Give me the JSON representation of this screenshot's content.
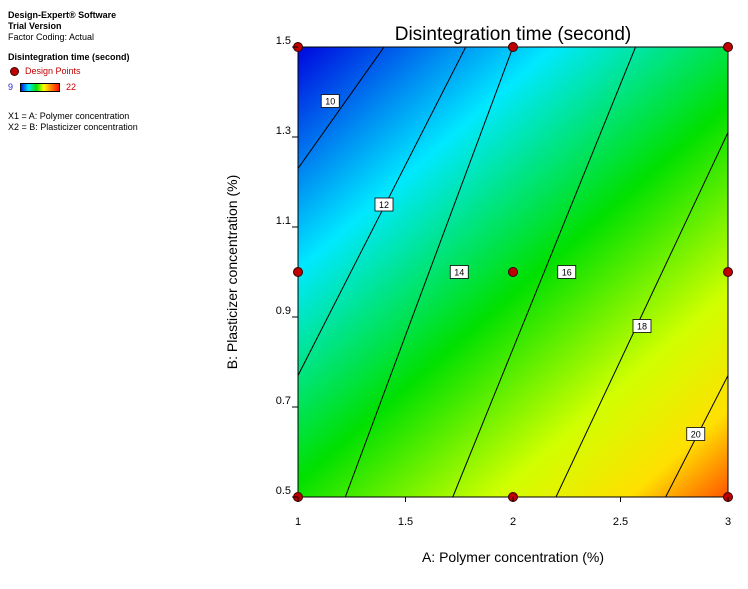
{
  "sidebar": {
    "software": "Design-Expert® Software",
    "version": "Trial Version",
    "coding": "Factor Coding: Actual",
    "response": "Disintegration time (second)",
    "design_points_label": "Design Points",
    "scale_min": "9",
    "scale_max": "22",
    "x1_def": "X1 = A: Polymer concentration",
    "x2_def": "X2 = B: Plasticizer concentration"
  },
  "colors": {
    "design_point": "#c00000",
    "scale_low": "#0018e0",
    "scale_high": "#ff1000"
  },
  "chart_data": {
    "type": "contour",
    "title": "Disintegration time (second)",
    "xlabel": "A: Polymer concentration (%)",
    "ylabel": "B: Plasticizer concentration (%)",
    "xlim": [
      1,
      3
    ],
    "ylim": [
      0.5,
      1.5
    ],
    "x_ticks": [
      "1",
      "1.5",
      "2",
      "2.5",
      "3"
    ],
    "y_ticks": [
      "0.5",
      "0.7",
      "0.9",
      "1.1",
      "1.3",
      "1.5"
    ],
    "color_range": [
      9,
      22
    ],
    "contours": [
      {
        "label": "10",
        "line": [
          [
            1.0,
            1.23
          ],
          [
            1.4,
            1.5
          ]
        ],
        "label_at": [
          1.15,
          1.38
        ]
      },
      {
        "label": "12",
        "line": [
          [
            1.0,
            0.77
          ],
          [
            1.78,
            1.5
          ]
        ],
        "label_at": [
          1.4,
          1.15
        ]
      },
      {
        "label": "14",
        "line": [
          [
            1.22,
            0.5
          ],
          [
            2.0,
            1.5
          ]
        ],
        "label_at": [
          1.75,
          1.0
        ]
      },
      {
        "label": "16",
        "line": [
          [
            1.72,
            0.5
          ],
          [
            2.57,
            1.5
          ]
        ],
        "label_at": [
          2.25,
          1.0
        ]
      },
      {
        "label": "18",
        "line": [
          [
            2.2,
            0.5
          ],
          [
            3.0,
            1.31
          ]
        ],
        "label_at": [
          2.6,
          0.88
        ]
      },
      {
        "label": "20",
        "line": [
          [
            2.71,
            0.5
          ],
          [
            3.0,
            0.77
          ]
        ],
        "label_at": [
          2.85,
          0.64
        ]
      }
    ],
    "design_points": [
      [
        1,
        0.5
      ],
      [
        2,
        0.5
      ],
      [
        3,
        0.5
      ],
      [
        1,
        1.0
      ],
      [
        2,
        1.0
      ],
      [
        3,
        1.0
      ],
      [
        1,
        1.5
      ],
      [
        2,
        1.5
      ],
      [
        3,
        1.5
      ]
    ]
  }
}
